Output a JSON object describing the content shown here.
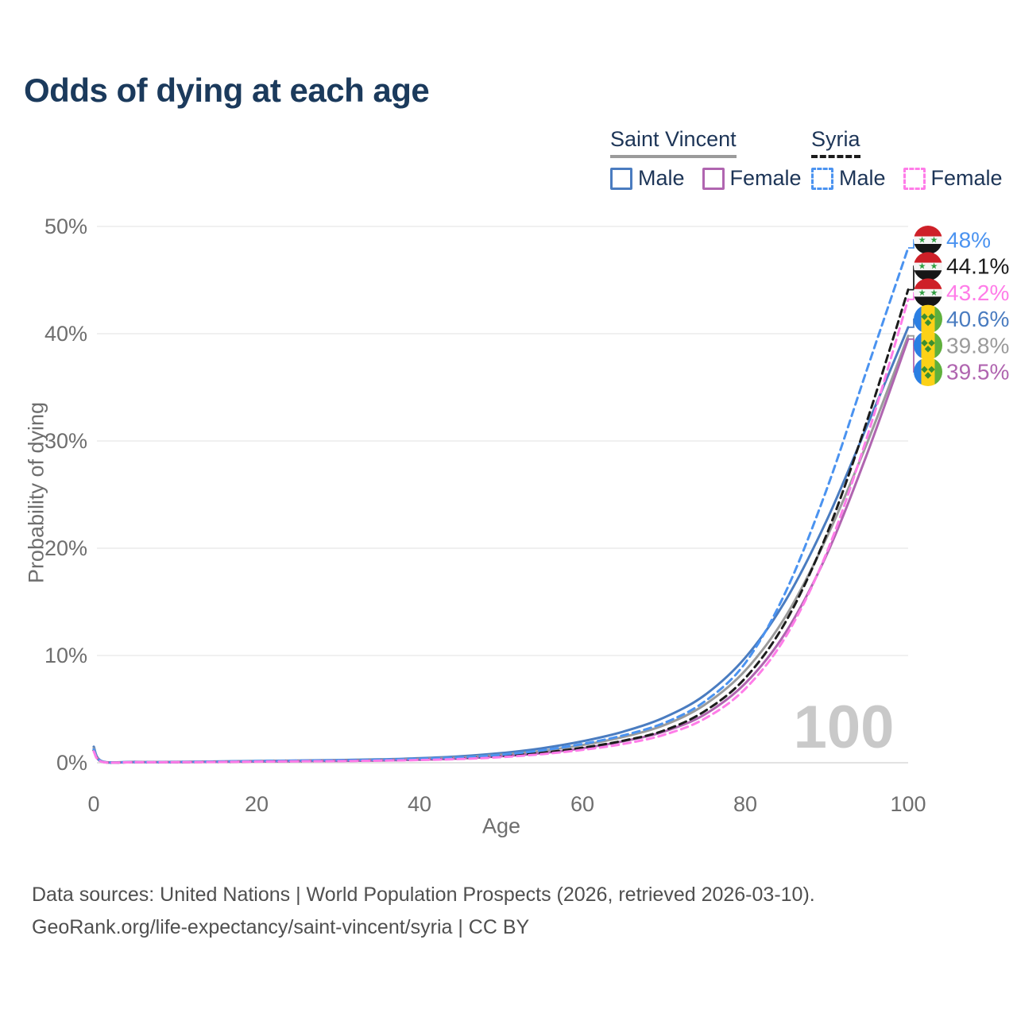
{
  "title": "Odds of dying at each age",
  "watermark": "100",
  "legend": {
    "groups": [
      {
        "name": "Saint Vincent",
        "line_style": "solid",
        "underline_color": "#9b9b9b",
        "items": [
          {
            "label": "Male",
            "color": "#4a7cc0"
          },
          {
            "label": "Female",
            "color": "#b065b0"
          }
        ]
      },
      {
        "name": "Syria",
        "line_style": "dashed",
        "underline_color": "#1c1c1c",
        "items": [
          {
            "label": "Male",
            "color": "#4b93f0"
          },
          {
            "label": "Female",
            "color": "#ff7ce8"
          }
        ]
      }
    ]
  },
  "chart_data": {
    "type": "line",
    "title": "Odds of dying at each age",
    "xlabel": "Age",
    "ylabel": "Probability of dying",
    "xlim": [
      0,
      100
    ],
    "ylim": [
      0,
      50
    ],
    "grid": "horizontal",
    "x_ticks": [
      {
        "age": 0,
        "label": "0"
      },
      {
        "age": 20,
        "label": "20"
      },
      {
        "age": 40,
        "label": "40"
      },
      {
        "age": 60,
        "label": "60"
      },
      {
        "age": 80,
        "label": "80"
      },
      {
        "age": 100,
        "label": "100"
      }
    ],
    "y_ticks": [
      {
        "pct": 0,
        "label": "0%"
      },
      {
        "pct": 10,
        "label": "10%"
      },
      {
        "pct": 20,
        "label": "20%"
      },
      {
        "pct": 30,
        "label": "30%"
      },
      {
        "pct": 40,
        "label": "40%"
      },
      {
        "pct": 50,
        "label": "50%"
      }
    ],
    "ages": [
      0,
      1,
      5,
      10,
      15,
      20,
      25,
      30,
      35,
      40,
      45,
      50,
      55,
      60,
      65,
      70,
      75,
      80,
      85,
      90,
      95,
      100
    ],
    "series": [
      {
        "key": "sv_male",
        "name": "Saint Vincent Male",
        "country": "saint_vincent",
        "sex": "male",
        "color": "#4a7cc0",
        "dash": false,
        "values": [
          1.5,
          0.15,
          0.08,
          0.08,
          0.12,
          0.17,
          0.21,
          0.25,
          0.31,
          0.42,
          0.6,
          0.9,
          1.35,
          2.0,
          2.9,
          4.2,
          6.3,
          9.8,
          15.2,
          22.6,
          31.5,
          40.6
        ]
      },
      {
        "key": "sv_total",
        "name": "Saint Vincent",
        "country": "saint_vincent",
        "sex": "both",
        "color": "#9b9b9b",
        "dash": false,
        "values": [
          1.35,
          0.12,
          0.07,
          0.07,
          0.1,
          0.14,
          0.18,
          0.21,
          0.26,
          0.35,
          0.5,
          0.75,
          1.1,
          1.65,
          2.4,
          3.5,
          5.4,
          8.6,
          13.7,
          21.0,
          29.9,
          39.8
        ]
      },
      {
        "key": "sv_female",
        "name": "Saint Vincent Female",
        "country": "saint_vincent",
        "sex": "female",
        "color": "#b065b0",
        "dash": false,
        "values": [
          1.2,
          0.1,
          0.06,
          0.06,
          0.08,
          0.11,
          0.14,
          0.17,
          0.21,
          0.28,
          0.4,
          0.6,
          0.9,
          1.35,
          2.0,
          2.9,
          4.5,
          7.4,
          12.2,
          19.4,
          28.9,
          39.5
        ]
      },
      {
        "key": "syria_total",
        "name": "Syria",
        "country": "syria",
        "sex": "both",
        "color": "#1c1c1c",
        "dash": true,
        "values": [
          1.15,
          0.1,
          0.05,
          0.05,
          0.08,
          0.12,
          0.15,
          0.18,
          0.22,
          0.29,
          0.41,
          0.6,
          0.92,
          1.4,
          2.05,
          3.0,
          4.8,
          7.9,
          13.2,
          21.3,
          32.0,
          44.1
        ]
      },
      {
        "key": "syria_male",
        "name": "Syria Male",
        "country": "syria",
        "sex": "male",
        "color": "#4b93f0",
        "dash": true,
        "values": [
          1.25,
          0.12,
          0.06,
          0.06,
          0.1,
          0.15,
          0.19,
          0.22,
          0.27,
          0.36,
          0.5,
          0.75,
          1.15,
          1.75,
          2.55,
          3.7,
          5.7,
          9.3,
          16.0,
          25.5,
          36.8,
          48.0
        ]
      },
      {
        "key": "syria_female",
        "name": "Syria Female",
        "country": "syria",
        "sex": "female",
        "color": "#ff7ce8",
        "dash": true,
        "values": [
          1.05,
          0.09,
          0.05,
          0.05,
          0.07,
          0.1,
          0.13,
          0.15,
          0.19,
          0.25,
          0.35,
          0.52,
          0.8,
          1.2,
          1.75,
          2.6,
          4.1,
          6.9,
          11.8,
          19.6,
          30.5,
          43.2
        ]
      }
    ]
  },
  "end_labels": [
    {
      "series": "syria_male",
      "text": "48%",
      "flag": "syria"
    },
    {
      "series": "syria_total",
      "text": "44.1%",
      "flag": "syria"
    },
    {
      "series": "syria_female",
      "text": "43.2%",
      "flag": "syria"
    },
    {
      "series": "sv_male",
      "text": "40.6%",
      "flag": "saint_vincent"
    },
    {
      "series": "sv_total",
      "text": "39.8%",
      "flag": "saint_vincent"
    },
    {
      "series": "sv_female",
      "text": "39.5%",
      "flag": "saint_vincent"
    }
  ],
  "source": {
    "line1": "Data sources: United Nations | World Population Prospects (2026, retrieved 2026-03-10).",
    "line2": "GeoRank.org/life-expectancy/saint-vincent/syria | CC BY"
  }
}
